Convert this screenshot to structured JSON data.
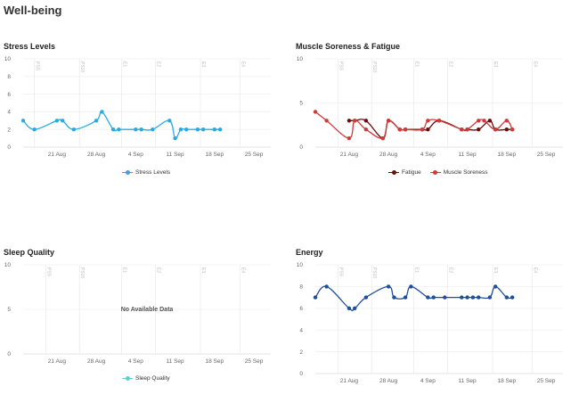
{
  "page": {
    "title": "Well-being"
  },
  "chart_data": [
    {
      "id": "stress",
      "type": "line",
      "title": "Stress Levels",
      "ylim": [
        0,
        10
      ],
      "yticks": [
        0,
        2,
        4,
        6,
        8,
        10
      ],
      "xlim": [
        0,
        44
      ],
      "xtick_positions": [
        6,
        13,
        20,
        27,
        34,
        41
      ],
      "xticks": [
        "21 Aug",
        "28 Aug",
        "4 Sep",
        "11 Sep",
        "18 Sep",
        "25 Sep"
      ],
      "phase_positions": [
        2,
        10,
        17.5,
        23.5,
        31.5,
        38.5
      ],
      "phases": [
        "PSS",
        "PS10",
        "E1",
        "E2",
        "E3",
        "E4"
      ],
      "series": [
        {
          "name": "Stress Levels",
          "color": "#29abe2",
          "x": [
            0,
            2,
            6,
            7,
            9,
            13,
            14,
            16,
            17,
            20,
            21,
            23,
            26,
            27,
            28,
            29,
            31,
            32,
            34,
            35
          ],
          "y": [
            3,
            2,
            3,
            3,
            2,
            3,
            4,
            2,
            2,
            2,
            2,
            2,
            3,
            1,
            2,
            2,
            2,
            2,
            2,
            2
          ]
        }
      ]
    },
    {
      "id": "muscle",
      "type": "line",
      "title": "Muscle Soreness & Fatigue",
      "ylim": [
        0,
        10
      ],
      "yticks": [
        0,
        5,
        10
      ],
      "xlim": [
        0,
        44
      ],
      "xtick_positions": [
        6,
        13,
        20,
        27,
        34,
        41
      ],
      "xticks": [
        "21 Aug",
        "28 Aug",
        "4 Sep",
        "11 Sep",
        "18 Sep",
        "25 Sep"
      ],
      "phase_positions": [
        4,
        10,
        17.5,
        23.5,
        31.5,
        38.5
      ],
      "phases": [
        "PSS",
        "PS10",
        "E1",
        "E2",
        "E3",
        "E4"
      ],
      "series": [
        {
          "name": "Fatigue",
          "color": "#6b0d0d",
          "x": [
            6,
            7,
            9,
            12,
            13,
            15,
            16,
            19,
            20,
            22,
            26,
            27,
            29,
            31,
            32,
            34,
            35
          ],
          "y": [
            3,
            3,
            3,
            1,
            3,
            2,
            2,
            2,
            2,
            3,
            2,
            2,
            2,
            3,
            2,
            2,
            2
          ]
        },
        {
          "name": "Muscle Soreness",
          "color": "#d13a3a",
          "x": [
            0,
            2,
            6,
            7,
            9,
            12,
            13,
            15,
            16,
            19,
            20,
            22,
            26,
            27,
            29,
            30,
            32,
            34,
            35
          ],
          "y": [
            4,
            3,
            1,
            3,
            2,
            1,
            3,
            2,
            2,
            2,
            3,
            3,
            2,
            2,
            3,
            3,
            2,
            3,
            2
          ]
        }
      ]
    },
    {
      "id": "sleep",
      "type": "line",
      "title": "Sleep Quality",
      "ylim": [
        0,
        10
      ],
      "yticks": [
        0,
        5,
        10
      ],
      "xlim": [
        0,
        44
      ],
      "xtick_positions": [
        6,
        13,
        20,
        27,
        34,
        41
      ],
      "xticks": [
        "21 Aug",
        "28 Aug",
        "4 Sep",
        "11 Sep",
        "18 Sep",
        "25 Sep"
      ],
      "phase_positions": [
        4,
        10,
        17.5,
        23.5,
        31.5,
        38.5
      ],
      "phases": [
        "PSS",
        "PS10",
        "E1",
        "E2",
        "E3",
        "E4"
      ],
      "no_data": "No Available Data",
      "series": [
        {
          "name": "Sleep Quality",
          "color": "#5ccfcf",
          "x": [],
          "y": []
        }
      ]
    },
    {
      "id": "energy",
      "type": "line",
      "title": "Energy",
      "ylim": [
        0,
        10
      ],
      "yticks": [
        0,
        2,
        4,
        6,
        8,
        10
      ],
      "xlim": [
        0,
        44
      ],
      "xtick_positions": [
        6,
        13,
        20,
        27,
        34,
        41
      ],
      "xticks": [
        "21 Aug",
        "28 Aug",
        "4 Sep",
        "11 Sep",
        "18 Sep",
        "25 Sep"
      ],
      "phase_positions": [
        4,
        10,
        17.5,
        23.5,
        31.5,
        38.5
      ],
      "phases": [
        "PSS",
        "PS10",
        "E1",
        "E2",
        "E3",
        "E4"
      ],
      "series": [
        {
          "name": "Energy",
          "color": "#1f4e9c",
          "x": [
            0,
            2,
            6,
            7,
            9,
            13,
            14,
            16,
            17,
            20,
            21,
            23,
            26,
            27,
            28,
            29,
            31,
            32,
            34,
            35
          ],
          "y": [
            7,
            8,
            6,
            6,
            7,
            8,
            7,
            7,
            8,
            7,
            7,
            7,
            7,
            7,
            7,
            7,
            7,
            8,
            7,
            7
          ]
        }
      ]
    }
  ]
}
